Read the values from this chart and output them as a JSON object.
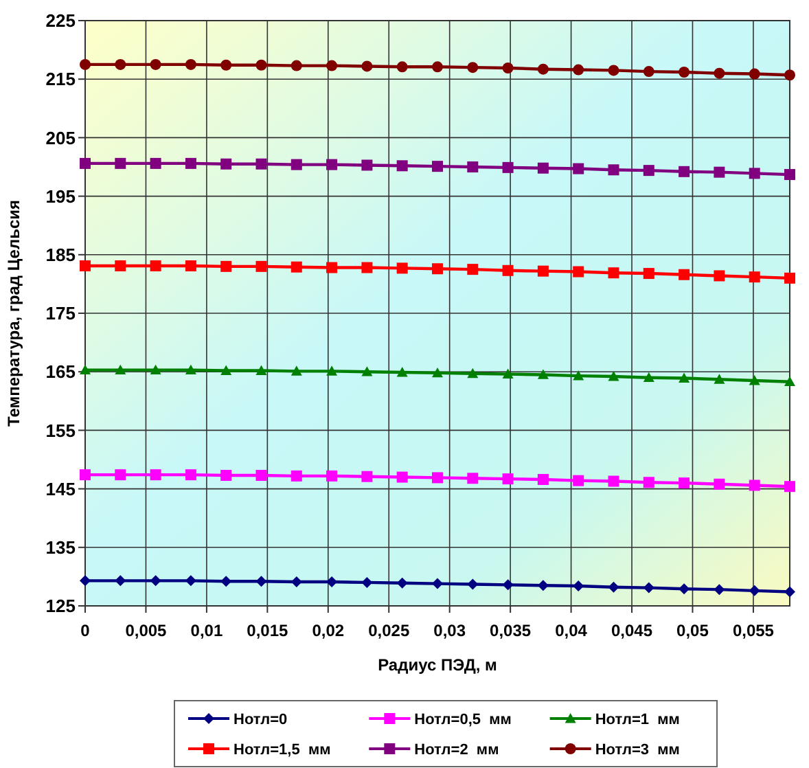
{
  "chart_data": {
    "type": "line",
    "xlabel": "Радиус ПЭД, м",
    "ylabel": "Температура, град Цельсия",
    "x": [
      0,
      0.0029,
      0.0058,
      0.0087,
      0.0116,
      0.0145,
      0.0174,
      0.0203,
      0.0232,
      0.0261,
      0.029,
      0.0319,
      0.0348,
      0.0377,
      0.0406,
      0.0435,
      0.0464,
      0.0493,
      0.0522,
      0.0551,
      0.058
    ],
    "series": [
      {
        "name": "Нотл=0",
        "color": "#000080",
        "marker": "diamond",
        "values": [
          129.3,
          129.3,
          129.3,
          129.3,
          129.2,
          129.2,
          129.1,
          129.1,
          129.0,
          128.9,
          128.8,
          128.7,
          128.6,
          128.5,
          128.4,
          128.2,
          128.1,
          127.9,
          127.8,
          127.6,
          127.4
        ]
      },
      {
        "name": "Нотл=0,5  мм",
        "color": "#ff00ff",
        "marker": "square",
        "values": [
          147.4,
          147.4,
          147.4,
          147.4,
          147.3,
          147.3,
          147.2,
          147.2,
          147.1,
          147.0,
          146.9,
          146.8,
          146.7,
          146.6,
          146.4,
          146.3,
          146.1,
          146.0,
          145.8,
          145.6,
          145.4
        ]
      },
      {
        "name": "Нотл=1  мм",
        "color": "#008000",
        "marker": "triangle",
        "values": [
          165.3,
          165.3,
          165.3,
          165.3,
          165.2,
          165.2,
          165.1,
          165.1,
          165.0,
          164.9,
          164.8,
          164.7,
          164.6,
          164.5,
          164.3,
          164.2,
          164.0,
          163.9,
          163.7,
          163.5,
          163.3
        ]
      },
      {
        "name": "Нотл=1,5  мм",
        "color": "#ff0000",
        "marker": "square",
        "values": [
          183.1,
          183.1,
          183.1,
          183.1,
          183.0,
          183.0,
          182.9,
          182.8,
          182.8,
          182.7,
          182.6,
          182.5,
          182.3,
          182.2,
          182.1,
          181.9,
          181.8,
          181.6,
          181.4,
          181.2,
          181.0
        ]
      },
      {
        "name": "Нотл=2  мм",
        "color": "#800080",
        "marker": "square",
        "values": [
          200.6,
          200.6,
          200.6,
          200.6,
          200.5,
          200.5,
          200.4,
          200.4,
          200.3,
          200.2,
          200.1,
          200.0,
          199.9,
          199.8,
          199.7,
          199.5,
          199.4,
          199.2,
          199.1,
          198.9,
          198.7
        ]
      },
      {
        "name": "Нотл=3  мм",
        "color": "#800000",
        "marker": "circle",
        "values": [
          217.5,
          217.5,
          217.5,
          217.5,
          217.4,
          217.4,
          217.3,
          217.3,
          217.2,
          217.1,
          217.1,
          217.0,
          216.9,
          216.7,
          216.6,
          216.5,
          216.3,
          216.2,
          216.0,
          215.9,
          215.7
        ]
      }
    ],
    "xlim": [
      0,
      0.058
    ],
    "ylim": [
      125,
      225
    ],
    "xticks": [
      0,
      {
        "value": 0.005,
        "label": "0,005"
      },
      {
        "value": 0.01,
        "label": "0,01"
      },
      {
        "value": 0.015,
        "label": "0,015"
      },
      {
        "value": 0.02,
        "label": "0,02"
      },
      {
        "value": 0.025,
        "label": "0,025"
      },
      {
        "value": 0.03,
        "label": "0,03"
      },
      {
        "value": 0.035,
        "label": "0,035"
      },
      {
        "value": 0.04,
        "label": "0,04"
      },
      {
        "value": 0.045,
        "label": "0,045"
      },
      {
        "value": 0.05,
        "label": "0,05"
      },
      {
        "value": 0.055,
        "label": "0,055"
      }
    ],
    "yticks": [
      125,
      135,
      145,
      155,
      165,
      175,
      185,
      195,
      205,
      215,
      225
    ],
    "grid": true,
    "legend": "bottom"
  }
}
